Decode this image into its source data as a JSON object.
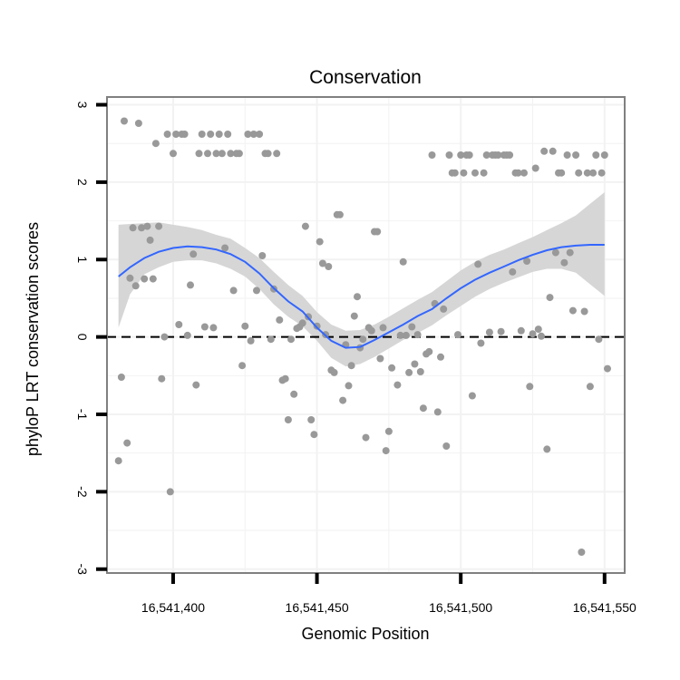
{
  "chart_data": {
    "type": "scatter",
    "title": "Conservation",
    "xlabel": "Genomic Position",
    "ylabel": "phyloP LRT conservation scores",
    "xlim": [
      16541377,
      16541557
    ],
    "ylim": [
      -3.05,
      3.1
    ],
    "x_ticks": [
      16541400,
      16541450,
      16541500,
      16541550
    ],
    "x_tick_labels": [
      "16,541,400",
      "16,541,450",
      "16,541,500",
      "16,541,550"
    ],
    "y_ticks": [
      -3,
      -2,
      -1,
      0,
      1,
      2,
      3
    ],
    "y_tick_labels": [
      "-3",
      "-2",
      "-1",
      "0",
      "1",
      "2",
      "3"
    ],
    "grid": true,
    "reference_line": {
      "y": 0,
      "style": "dashed",
      "color": "#000000"
    },
    "colors": {
      "points": "#999999",
      "smooth": "#3366ff",
      "ribbon": "#d6d6d6",
      "panel_border": "#808080",
      "grid": "#f2f2f2"
    },
    "series": [
      {
        "name": "scores",
        "points": [
          [
            16541381,
            -1.6
          ],
          [
            16541382,
            -0.52
          ],
          [
            16541383,
            2.79
          ],
          [
            16541384,
            -1.37
          ],
          [
            16541385,
            0.76
          ],
          [
            16541386,
            1.41
          ],
          [
            16541387,
            0.66
          ],
          [
            16541388,
            2.76
          ],
          [
            16541389,
            1.41
          ],
          [
            16541390,
            0.75
          ],
          [
            16541391,
            1.43
          ],
          [
            16541392,
            1.25
          ],
          [
            16541393,
            0.75
          ],
          [
            16541394,
            2.5
          ],
          [
            16541395,
            1.43
          ],
          [
            16541396,
            -0.54
          ],
          [
            16541397,
            0.0
          ],
          [
            16541398,
            2.62
          ],
          [
            16541399,
            -2.0
          ],
          [
            16541400,
            2.37
          ],
          [
            16541401,
            2.62
          ],
          [
            16541402,
            0.16
          ],
          [
            16541403,
            2.62
          ],
          [
            16541404,
            2.62
          ],
          [
            16541405,
            0.02
          ],
          [
            16541406,
            0.67
          ],
          [
            16541407,
            1.07
          ],
          [
            16541408,
            -0.62
          ],
          [
            16541409,
            2.37
          ],
          [
            16541410,
            2.62
          ],
          [
            16541411,
            0.13
          ],
          [
            16541412,
            2.37
          ],
          [
            16541413,
            2.62
          ],
          [
            16541414,
            0.12
          ],
          [
            16541415,
            2.37
          ],
          [
            16541416,
            2.62
          ],
          [
            16541417,
            2.37
          ],
          [
            16541418,
            1.15
          ],
          [
            16541419,
            2.62
          ],
          [
            16541420,
            2.37
          ],
          [
            16541421,
            0.6
          ],
          [
            16541422,
            2.37
          ],
          [
            16541423,
            2.37
          ],
          [
            16541424,
            -0.37
          ],
          [
            16541425,
            0.14
          ],
          [
            16541426,
            2.62
          ],
          [
            16541427,
            -0.05
          ],
          [
            16541428,
            2.62
          ],
          [
            16541429,
            0.6
          ],
          [
            16541430,
            2.62
          ],
          [
            16541431,
            1.05
          ],
          [
            16541432,
            2.37
          ],
          [
            16541433,
            2.37
          ],
          [
            16541434,
            -0.03
          ],
          [
            16541435,
            0.62
          ],
          [
            16541436,
            2.37
          ],
          [
            16541437,
            0.22
          ],
          [
            16541438,
            -0.56
          ],
          [
            16541439,
            -0.54
          ],
          [
            16541440,
            -1.07
          ],
          [
            16541441,
            -0.03
          ],
          [
            16541442,
            -0.74
          ],
          [
            16541443,
            0.11
          ],
          [
            16541444,
            0.13
          ],
          [
            16541445,
            0.18
          ],
          [
            16541446,
            1.43
          ],
          [
            16541447,
            0.26
          ],
          [
            16541448,
            -1.07
          ],
          [
            16541449,
            -1.26
          ],
          [
            16541450,
            0.14
          ],
          [
            16541451,
            1.23
          ],
          [
            16541452,
            0.95
          ],
          [
            16541453,
            0.03
          ],
          [
            16541454,
            0.91
          ],
          [
            16541455,
            -0.43
          ],
          [
            16541456,
            -0.46
          ],
          [
            16541457,
            1.58
          ],
          [
            16541458,
            1.58
          ],
          [
            16541459,
            -0.82
          ],
          [
            16541460,
            -0.1
          ],
          [
            16541461,
            -0.63
          ],
          [
            16541462,
            -0.37
          ],
          [
            16541463,
            0.27
          ],
          [
            16541464,
            0.52
          ],
          [
            16541465,
            -0.14
          ],
          [
            16541466,
            -0.03
          ],
          [
            16541467,
            -1.3
          ],
          [
            16541468,
            0.12
          ],
          [
            16541469,
            0.08
          ],
          [
            16541470,
            1.36
          ],
          [
            16541471,
            1.36
          ],
          [
            16541472,
            -0.28
          ],
          [
            16541473,
            0.12
          ],
          [
            16541474,
            -1.47
          ],
          [
            16541475,
            -1.22
          ],
          [
            16541476,
            -0.4
          ],
          [
            16541478,
            -0.62
          ],
          [
            16541479,
            0.02
          ],
          [
            16541480,
            0.97
          ],
          [
            16541481,
            0.02
          ],
          [
            16541482,
            -0.46
          ],
          [
            16541483,
            0.13
          ],
          [
            16541484,
            -0.35
          ],
          [
            16541485,
            0.03
          ],
          [
            16541486,
            -0.45
          ],
          [
            16541487,
            -0.92
          ],
          [
            16541488,
            -0.22
          ],
          [
            16541489,
            -0.19
          ],
          [
            16541490,
            2.35
          ],
          [
            16541491,
            0.43
          ],
          [
            16541492,
            -0.97
          ],
          [
            16541493,
            -0.26
          ],
          [
            16541494,
            0.36
          ],
          [
            16541495,
            -1.41
          ],
          [
            16541496,
            2.35
          ],
          [
            16541497,
            2.12
          ],
          [
            16541498,
            2.12
          ],
          [
            16541499,
            0.03
          ],
          [
            16541500,
            2.35
          ],
          [
            16541501,
            2.12
          ],
          [
            16541502,
            2.35
          ],
          [
            16541503,
            2.35
          ],
          [
            16541504,
            -0.76
          ],
          [
            16541505,
            2.12
          ],
          [
            16541506,
            0.94
          ],
          [
            16541507,
            -0.08
          ],
          [
            16541508,
            2.12
          ],
          [
            16541509,
            2.35
          ],
          [
            16541510,
            0.06
          ],
          [
            16541511,
            2.35
          ],
          [
            16541512,
            2.35
          ],
          [
            16541513,
            2.35
          ],
          [
            16541514,
            0.07
          ],
          [
            16541515,
            2.35
          ],
          [
            16541516,
            2.35
          ],
          [
            16541517,
            2.35
          ],
          [
            16541518,
            0.84
          ],
          [
            16541519,
            2.12
          ],
          [
            16541520,
            2.12
          ],
          [
            16541521,
            0.08
          ],
          [
            16541522,
            2.12
          ],
          [
            16541523,
            0.98
          ],
          [
            16541524,
            -0.64
          ],
          [
            16541525,
            0.04
          ],
          [
            16541526,
            2.18
          ],
          [
            16541527,
            0.1
          ],
          [
            16541528,
            0.01
          ],
          [
            16541529,
            2.4
          ],
          [
            16541530,
            -1.45
          ],
          [
            16541531,
            0.51
          ],
          [
            16541532,
            2.4
          ],
          [
            16541533,
            1.09
          ],
          [
            16541534,
            2.12
          ],
          [
            16541535,
            2.12
          ],
          [
            16541536,
            0.96
          ],
          [
            16541537,
            2.35
          ],
          [
            16541538,
            1.09
          ],
          [
            16541539,
            0.34
          ],
          [
            16541540,
            2.35
          ],
          [
            16541541,
            2.12
          ],
          [
            16541542,
            -2.78
          ],
          [
            16541543,
            0.33
          ],
          [
            16541544,
            2.12
          ],
          [
            16541545,
            -0.64
          ],
          [
            16541546,
            2.12
          ],
          [
            16541547,
            2.35
          ],
          [
            16541548,
            -0.03
          ],
          [
            16541549,
            2.12
          ],
          [
            16541550,
            2.35
          ],
          [
            16541551,
            -0.41
          ]
        ]
      }
    ],
    "smooth": {
      "name": "loess",
      "x": [
        16541381,
        16541385,
        16541390,
        16541395,
        16541400,
        16541405,
        16541410,
        16541415,
        16541420,
        16541425,
        16541430,
        16541435,
        16541440,
        16541445,
        16541450,
        16541455,
        16541460,
        16541465,
        16541470,
        16541475,
        16541480,
        16541485,
        16541490,
        16541495,
        16541500,
        16541505,
        16541510,
        16541515,
        16541520,
        16541525,
        16541530,
        16541535,
        16541540,
        16541545,
        16541550
      ],
      "y": [
        0.78,
        0.9,
        1.02,
        1.1,
        1.15,
        1.17,
        1.16,
        1.13,
        1.07,
        0.97,
        0.82,
        0.63,
        0.46,
        0.33,
        0.12,
        -0.05,
        -0.14,
        -0.13,
        -0.04,
        0.06,
        0.16,
        0.27,
        0.36,
        0.5,
        0.63,
        0.74,
        0.83,
        0.91,
        0.99,
        1.06,
        1.12,
        1.16,
        1.18,
        1.19,
        1.19
      ],
      "lower": [
        0.12,
        0.55,
        0.81,
        0.9,
        0.97,
        0.99,
        0.99,
        0.95,
        0.88,
        0.78,
        0.62,
        0.42,
        0.26,
        0.14,
        -0.05,
        -0.27,
        -0.38,
        -0.35,
        -0.26,
        -0.15,
        -0.04,
        0.05,
        0.15,
        0.28,
        0.4,
        0.52,
        0.62,
        0.7,
        0.77,
        0.84,
        0.88,
        0.88,
        0.83,
        0.68,
        0.53
      ],
      "upper": [
        1.45,
        1.46,
        1.47,
        1.48,
        1.45,
        1.42,
        1.38,
        1.32,
        1.27,
        1.15,
        1.02,
        0.84,
        0.67,
        0.53,
        0.32,
        0.16,
        0.08,
        0.09,
        0.16,
        0.26,
        0.37,
        0.48,
        0.58,
        0.72,
        0.86,
        0.97,
        1.06,
        1.13,
        1.21,
        1.29,
        1.38,
        1.47,
        1.57,
        1.72,
        1.87
      ]
    }
  }
}
